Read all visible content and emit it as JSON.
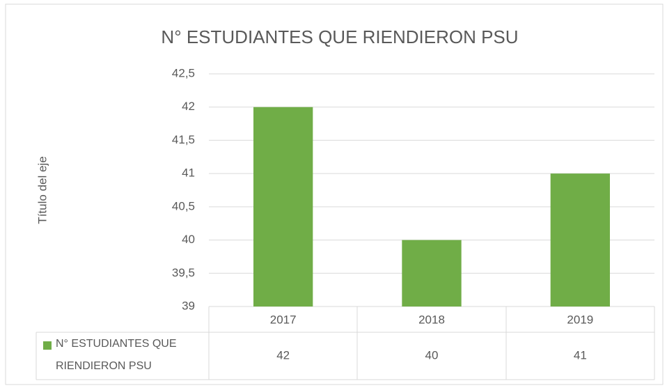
{
  "chart_data": {
    "type": "bar",
    "title": "N° ESTUDIANTES QUE RIENDIERON PSU",
    "y_label": "Título del eje",
    "categories": [
      "2017",
      "2018",
      "2019"
    ],
    "series": [
      {
        "name": "N° ESTUDIANTES QUE RIENDIERON PSU",
        "color": "#70ad47",
        "values": [
          42,
          40,
          41
        ]
      }
    ],
    "ylim": [
      39,
      42.5
    ],
    "yticks": [
      39,
      {
        "value": 39.5,
        "label": "39,5"
      },
      40,
      {
        "value": 40.5,
        "label": "40,5"
      },
      41,
      {
        "value": 41.5,
        "label": "41,5"
      },
      42,
      {
        "value": 42.5,
        "label": "42,5"
      }
    ],
    "grid": true,
    "data_table": true
  }
}
